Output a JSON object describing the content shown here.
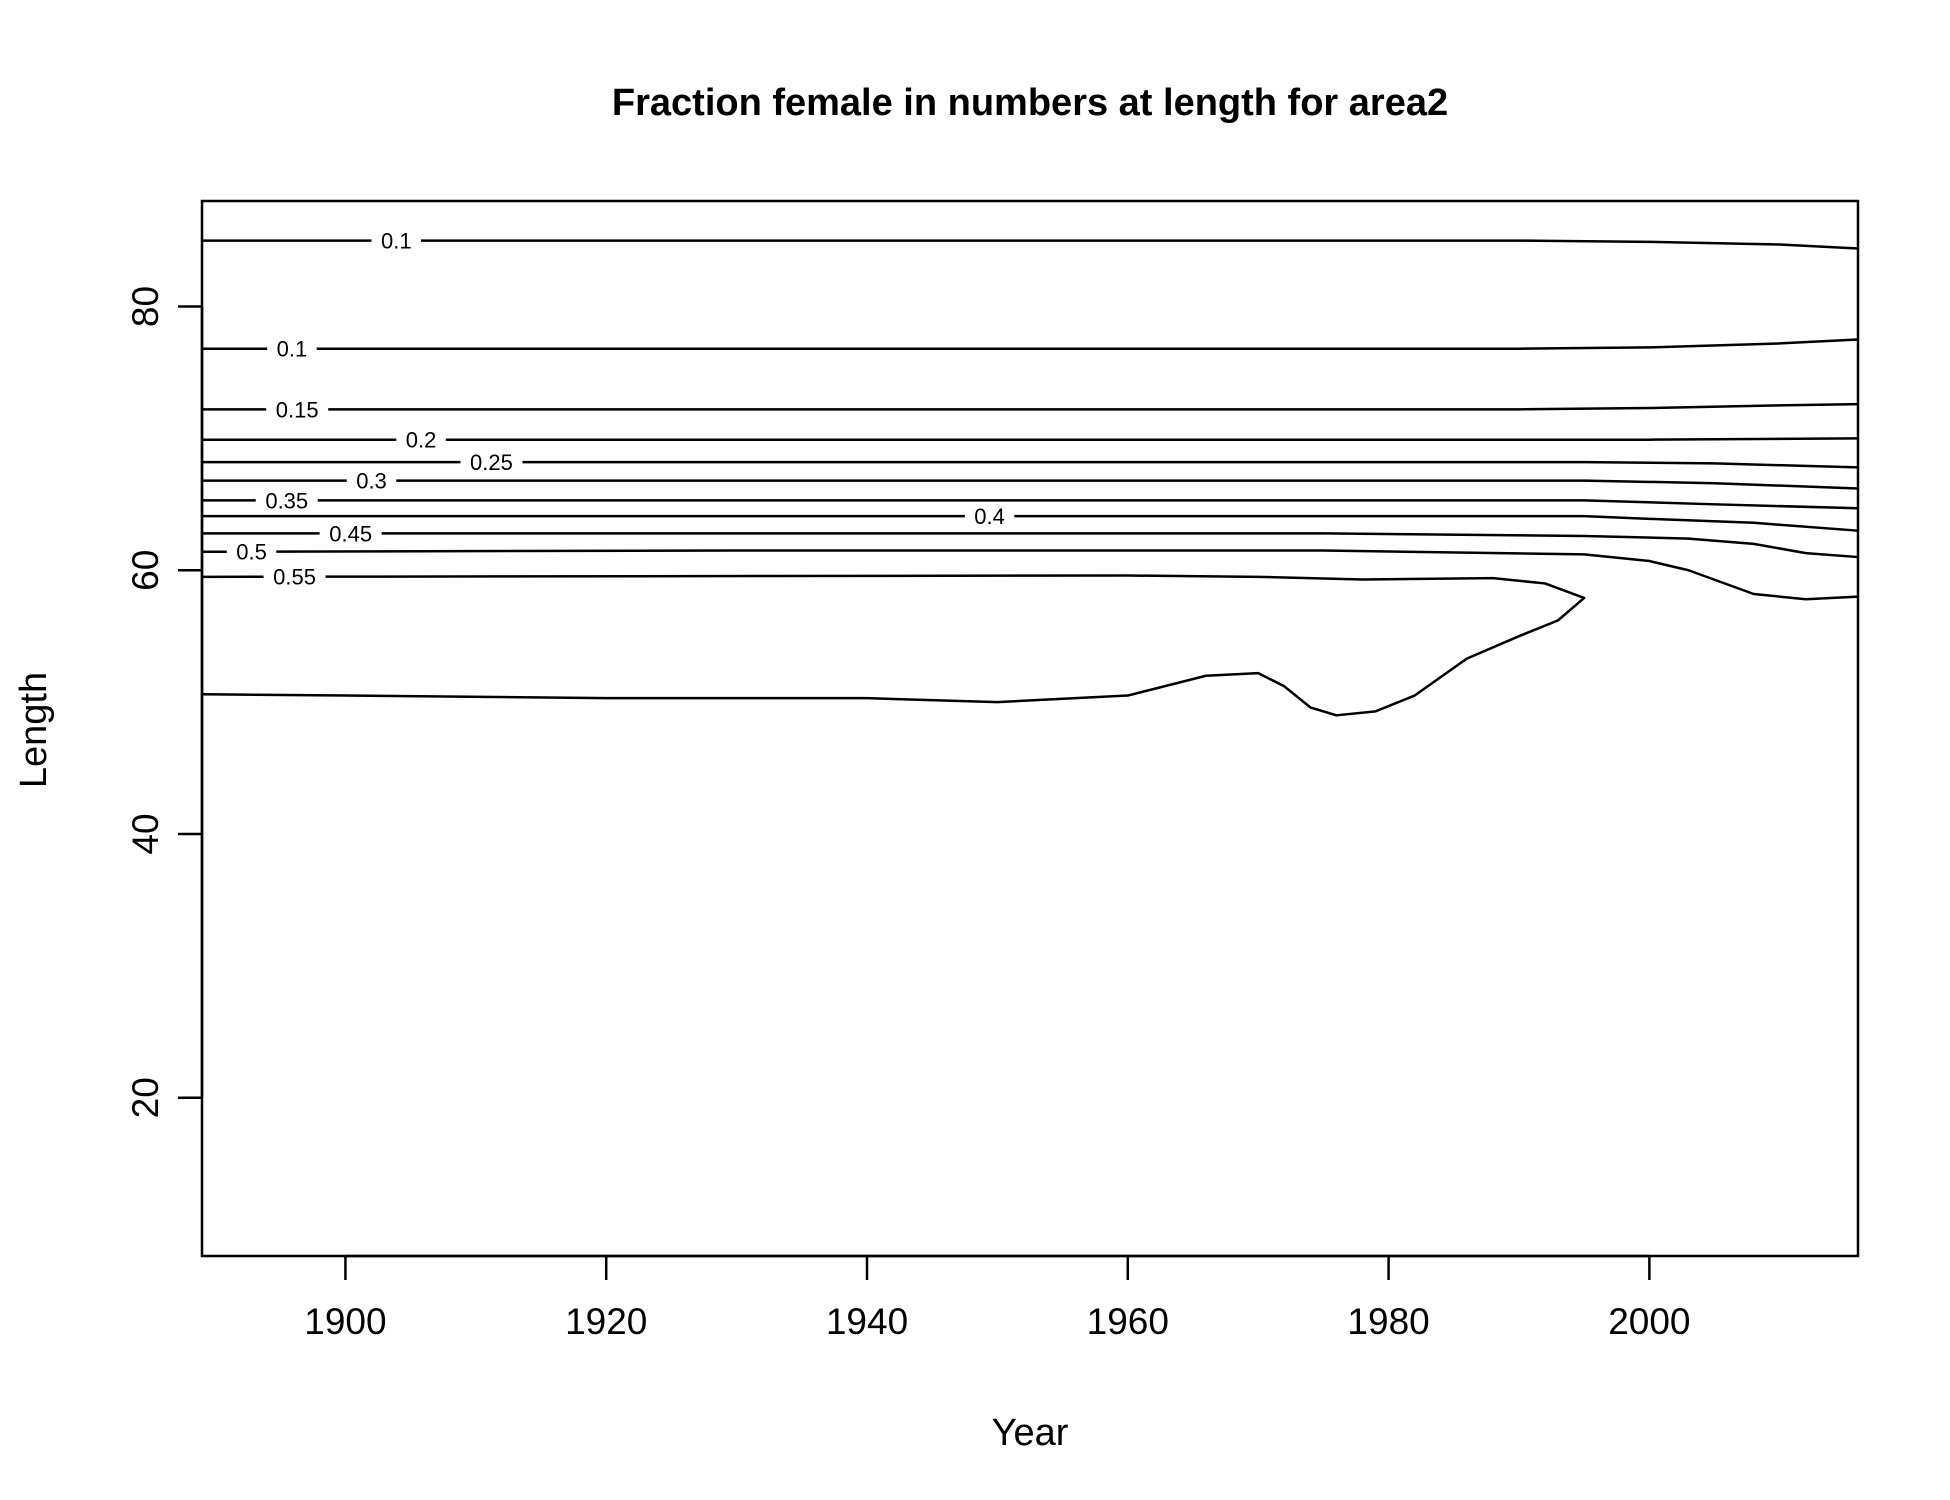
{
  "chart_data": {
    "type": "contour",
    "title": "Fraction female in numbers at length for area2",
    "xlabel": "Year",
    "ylabel": "Length",
    "xlim": [
      1889,
      2016
    ],
    "ylim": [
      8,
      88
    ],
    "xticks": [
      1900,
      1920,
      1940,
      1960,
      1980,
      2000
    ],
    "yticks": [
      20,
      40,
      60,
      80
    ],
    "grid": false,
    "contours": [
      {
        "level": "0.1",
        "label_x": 1903.9,
        "points": [
          [
            1889,
            85.0
          ],
          [
            1990,
            85.0
          ],
          [
            2000,
            84.9
          ],
          [
            2010,
            84.7
          ],
          [
            2016,
            84.4
          ]
        ]
      },
      {
        "level": "0.1",
        "label_x": 1895.9,
        "points": [
          [
            1889,
            76.8
          ],
          [
            1990,
            76.8
          ],
          [
            2000,
            76.9
          ],
          [
            2010,
            77.2
          ],
          [
            2016,
            77.5
          ]
        ]
      },
      {
        "level": "0.15",
        "label_x": 1896.3,
        "points": [
          [
            1889,
            72.2
          ],
          [
            1990,
            72.2
          ],
          [
            2000,
            72.3
          ],
          [
            2010,
            72.5
          ],
          [
            2016,
            72.6
          ]
        ]
      },
      {
        "level": "0.2",
        "label_x": 1905.8,
        "points": [
          [
            1889,
            69.9
          ],
          [
            1990,
            69.9
          ],
          [
            2000,
            69.9
          ],
          [
            2016,
            70.0
          ]
        ]
      },
      {
        "level": "0.25",
        "label_x": 1911.2,
        "points": [
          [
            1889,
            68.2
          ],
          [
            1995,
            68.2
          ],
          [
            2005,
            68.1
          ],
          [
            2016,
            67.8
          ]
        ]
      },
      {
        "level": "0.3",
        "label_x": 1902.0,
        "points": [
          [
            1889,
            66.8
          ],
          [
            1995,
            66.8
          ],
          [
            2005,
            66.6
          ],
          [
            2016,
            66.2
          ]
        ]
      },
      {
        "level": "0.35",
        "label_x": 1895.5,
        "points": [
          [
            1889,
            65.3
          ],
          [
            1995,
            65.3
          ],
          [
            2005,
            65.0
          ],
          [
            2016,
            64.7
          ]
        ]
      },
      {
        "level": "0.4",
        "label_x": 1949.4,
        "points": [
          [
            1889,
            64.1
          ],
          [
            1995,
            64.1
          ],
          [
            2000,
            63.9
          ],
          [
            2008,
            63.6
          ],
          [
            2016,
            63.0
          ]
        ]
      },
      {
        "level": "0.45",
        "label_x": 1900.4,
        "points": [
          [
            1889,
            62.8
          ],
          [
            1975,
            62.8
          ],
          [
            1995,
            62.6
          ],
          [
            2003,
            62.4
          ],
          [
            2008,
            62.0
          ],
          [
            2012,
            61.3
          ],
          [
            2016,
            61.0
          ]
        ]
      },
      {
        "level": "0.5",
        "label_x": 1892.8,
        "points": [
          [
            1889,
            61.4
          ],
          [
            1930,
            61.5
          ],
          [
            1975,
            61.5
          ],
          [
            1995,
            61.2
          ],
          [
            2000,
            60.7
          ],
          [
            2003,
            60.0
          ],
          [
            2008,
            58.2
          ],
          [
            2012,
            57.8
          ],
          [
            2016,
            58.0
          ]
        ]
      },
      {
        "level": "0.55",
        "label_x": 1896.1,
        "points": [
          [
            1889,
            59.5
          ],
          [
            1960,
            59.6
          ],
          [
            1970,
            59.5
          ],
          [
            1978,
            59.3
          ],
          [
            1988,
            59.4
          ],
          [
            1992,
            59.0
          ],
          [
            1995,
            57.9
          ],
          [
            1993,
            56.2
          ],
          [
            1990,
            55.0
          ],
          [
            1986,
            53.3
          ],
          [
            1982,
            50.5
          ],
          [
            1979,
            49.3
          ],
          [
            1976,
            49.0
          ],
          [
            1974,
            49.6
          ],
          [
            1972,
            51.2
          ],
          [
            1970,
            52.2
          ],
          [
            1966,
            52.0
          ],
          [
            1960,
            50.5
          ],
          [
            1950,
            50.0
          ],
          [
            1940,
            50.3
          ],
          [
            1920,
            50.3
          ],
          [
            1900,
            50.5
          ],
          [
            1889,
            50.6
          ]
        ]
      }
    ]
  }
}
